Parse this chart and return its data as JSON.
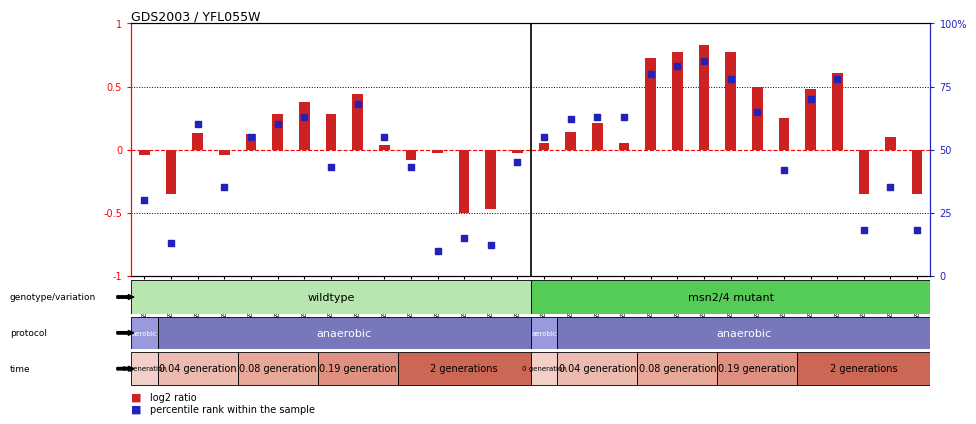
{
  "title": "GDS2003 / YFL055W",
  "samples": [
    "GSM41252",
    "GSM41253",
    "GSM41254",
    "GSM41255",
    "GSM41256",
    "GSM41257",
    "GSM41258",
    "GSM41259",
    "GSM41260",
    "GSM41264",
    "GSM41265",
    "GSM41266",
    "GSM41279",
    "GSM41280",
    "GSM41281",
    "GSM33504",
    "GSM33505",
    "GSM33506",
    "GSM33507",
    "GSM33508",
    "GSM33509",
    "GSM33510",
    "GSM33511",
    "GSM33512",
    "GSM33514",
    "GSM33516",
    "GSM33518",
    "GSM33520",
    "GSM33522",
    "GSM33523"
  ],
  "log2_ratio": [
    -0.04,
    -0.35,
    0.13,
    -0.04,
    0.12,
    0.28,
    0.38,
    0.28,
    0.44,
    0.04,
    -0.08,
    -0.03,
    -0.5,
    -0.47,
    -0.03,
    0.05,
    0.14,
    0.21,
    0.05,
    0.73,
    0.77,
    0.83,
    0.77,
    0.5,
    0.25,
    0.48,
    0.61,
    -0.35,
    0.1,
    -0.35
  ],
  "percentile": [
    30,
    13,
    60,
    35,
    55,
    60,
    63,
    43,
    68,
    55,
    43,
    10,
    15,
    12,
    45,
    55,
    62,
    63,
    63,
    80,
    83,
    85,
    78,
    65,
    42,
    70,
    78,
    18,
    35,
    18
  ],
  "genotype_groups": [
    {
      "label": "wildtype",
      "start": 0,
      "end": 14,
      "color": "#b8e6b0"
    },
    {
      "label": "msn2/4 mutant",
      "start": 15,
      "end": 29,
      "color": "#55cc55"
    }
  ],
  "protocol_groups": [
    {
      "label": "aerobic",
      "start": 0,
      "end": 0,
      "color": "#9999dd"
    },
    {
      "label": "anaerobic",
      "start": 1,
      "end": 14,
      "color": "#7777bb"
    },
    {
      "label": "aerobic",
      "start": 15,
      "end": 15,
      "color": "#9999dd"
    },
    {
      "label": "anaerobic",
      "start": 16,
      "end": 29,
      "color": "#7777bb"
    }
  ],
  "time_groups": [
    {
      "label": "0 generation",
      "start": 0,
      "end": 0,
      "color": "#f2cfc8"
    },
    {
      "label": "0.04 generation",
      "start": 1,
      "end": 3,
      "color": "#edbaaf"
    },
    {
      "label": "0.08 generation",
      "start": 4,
      "end": 6,
      "color": "#e8a898"
    },
    {
      "label": "0.19 generation",
      "start": 7,
      "end": 9,
      "color": "#e09080"
    },
    {
      "label": "2 generations",
      "start": 10,
      "end": 14,
      "color": "#cc6655"
    },
    {
      "label": "0 generation",
      "start": 15,
      "end": 15,
      "color": "#f2cfc8"
    },
    {
      "label": "0.04 generation",
      "start": 16,
      "end": 18,
      "color": "#edbaaf"
    },
    {
      "label": "0.08 generation",
      "start": 19,
      "end": 21,
      "color": "#e8a898"
    },
    {
      "label": "0.19 generation",
      "start": 22,
      "end": 24,
      "color": "#e09080"
    },
    {
      "label": "2 generations",
      "start": 25,
      "end": 29,
      "color": "#cc6655"
    }
  ],
  "bar_color": "#cc2222",
  "dot_color": "#2222bb",
  "background_color": "#ffffff",
  "ylim": [
    -1.0,
    1.0
  ],
  "yticks": [
    -1.0,
    -0.5,
    0.0,
    0.5,
    1.0
  ],
  "ytick_labels": [
    "-1",
    "-0.5",
    "0",
    "0.5",
    "1"
  ],
  "y2ticks": [
    0,
    25,
    50,
    75,
    100
  ],
  "y2tick_labels": [
    "0",
    "25",
    "50",
    "75",
    "100%"
  ],
  "dotted_lines": [
    -0.5,
    0.5
  ],
  "zero_line": 0.0
}
